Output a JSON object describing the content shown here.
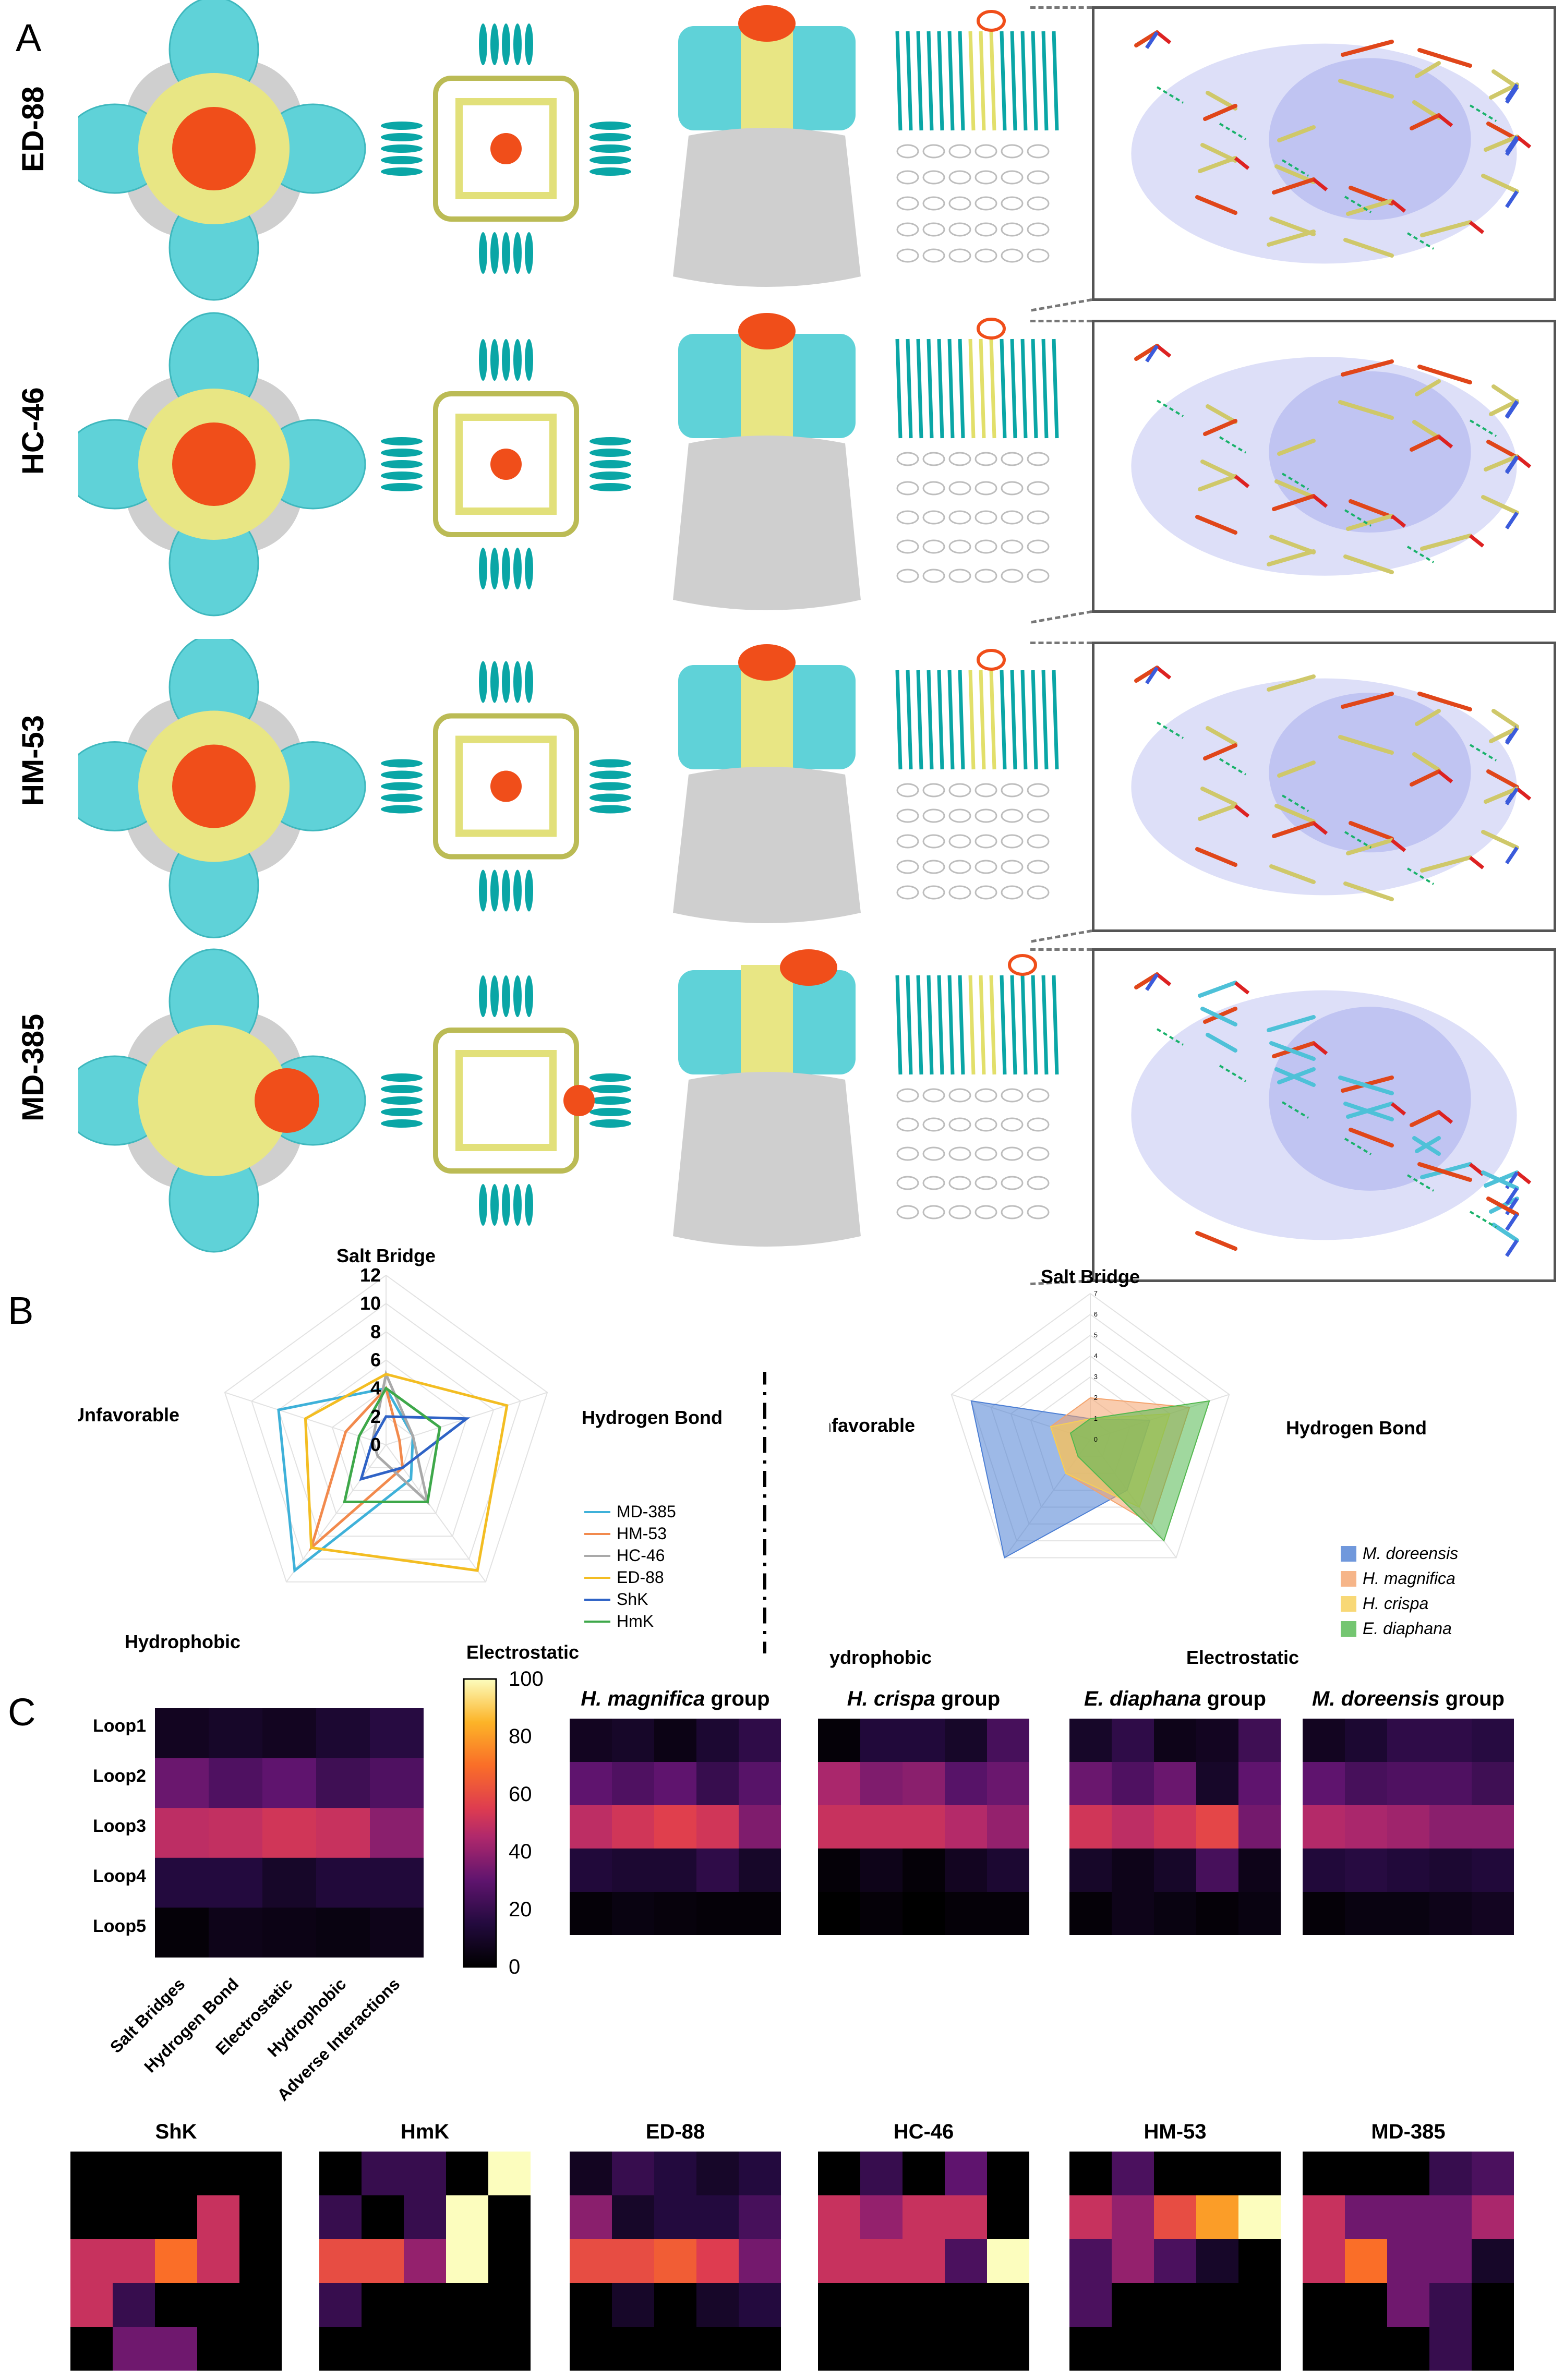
{
  "panels": {
    "a": "A",
    "b": "B",
    "c": "C"
  },
  "structures": {
    "rows": [
      {
        "label": "ED-88"
      },
      {
        "label": "HC-46"
      },
      {
        "label": "HM-53"
      },
      {
        "label": "MD-385"
      }
    ],
    "colors": {
      "channel": "#5fd2d8",
      "pore": "#e8e684",
      "toxin": "#f04e1a",
      "body": "#cfcfcf",
      "helix": "#0aa6a6"
    }
  },
  "radar_left": {
    "axes": [
      "Salt Bridge",
      "Hydrogen Bond",
      "Electrostatic",
      "Hydrophobic",
      "Unfavorable"
    ],
    "ticks": [
      "0",
      "2",
      "4",
      "6",
      "8",
      "10",
      "12"
    ],
    "max": 12,
    "series": [
      {
        "name": "MD-385",
        "color": "#3fb1d9",
        "values": [
          4,
          2,
          3,
          11,
          8
        ]
      },
      {
        "name": "HM-53",
        "color": "#f28a4d",
        "values": [
          4,
          1,
          2,
          9,
          3
        ]
      },
      {
        "name": "HC-46",
        "color": "#a9a9a9",
        "values": [
          5,
          2,
          5,
          1,
          1
        ]
      },
      {
        "name": "ED-88",
        "color": "#f3bd22",
        "values": [
          5,
          9,
          11,
          9,
          6
        ]
      },
      {
        "name": "ShK",
        "color": "#2f63c6",
        "values": [
          2,
          6,
          2,
          3,
          1
        ]
      },
      {
        "name": "HmK",
        "color": "#3ea84a",
        "values": [
          4,
          4,
          5,
          5,
          2
        ]
      }
    ]
  },
  "radar_right": {
    "axes": [
      "Salt Bridge",
      "Hydrogen Bond",
      "Electrostatic",
      "Hydrophobic",
      "Unfavorable"
    ],
    "ticks": [
      "0",
      "1",
      "2",
      "3",
      "4",
      "5",
      "6",
      "7"
    ],
    "max": 7,
    "series": [
      {
        "name": "M. doreensis",
        "color": "#4d7fd4",
        "values": [
          1,
          3,
          3,
          7,
          6
        ]
      },
      {
        "name": "H. magnifica",
        "color": "#f4a36c",
        "values": [
          2,
          5,
          5,
          2,
          2
        ]
      },
      {
        "name": "H. crispa",
        "color": "#f7cf55",
        "values": [
          1,
          4,
          4,
          2,
          2
        ]
      },
      {
        "name": "E. diaphana",
        "color": "#52b84e",
        "values": [
          1,
          6,
          6,
          1,
          1
        ]
      }
    ]
  },
  "heatmap_main": {
    "rows": [
      "Loop1",
      "Loop2",
      "Loop3",
      "Loop4",
      "Loop5"
    ],
    "cols": [
      "Salt Bridges",
      "Hydrogen Bond",
      "Electrostatic",
      "Hydrophobic",
      "Adverse Interactions"
    ],
    "values": [
      [
        8,
        10,
        8,
        12,
        16
      ],
      [
        32,
        26,
        30,
        22,
        26
      ],
      [
        48,
        49,
        52,
        50,
        38
      ],
      [
        15,
        15,
        10,
        14,
        14
      ],
      [
        2,
        6,
        5,
        4,
        6
      ]
    ],
    "colorbar": {
      "ticks": [
        "0",
        "20",
        "40",
        "60",
        "80",
        "100"
      ],
      "min": 0,
      "max": 100
    }
  },
  "group_heatmaps": [
    {
      "title_italic": "H. magnifica",
      "title_rest": " group",
      "values": [
        [
          8,
          10,
          5,
          12,
          18
        ],
        [
          30,
          26,
          30,
          20,
          28
        ],
        [
          48,
          52,
          56,
          52,
          36
        ],
        [
          14,
          12,
          12,
          18,
          10
        ],
        [
          2,
          4,
          3,
          2,
          2
        ]
      ]
    },
    {
      "title_italic": "H. crispa",
      "title_rest": " group",
      "values": [
        [
          2,
          14,
          14,
          10,
          24
        ],
        [
          44,
          36,
          38,
          28,
          32
        ],
        [
          50,
          50,
          50,
          46,
          40
        ],
        [
          2,
          6,
          2,
          8,
          12
        ],
        [
          0,
          2,
          0,
          2,
          2
        ]
      ]
    },
    {
      "title_italic": "E. diaphana",
      "title_rest": " group",
      "values": [
        [
          10,
          18,
          6,
          8,
          22
        ],
        [
          32,
          26,
          32,
          10,
          30
        ],
        [
          52,
          48,
          52,
          58,
          34
        ],
        [
          10,
          6,
          10,
          24,
          6
        ],
        [
          2,
          6,
          4,
          2,
          4
        ]
      ]
    },
    {
      "title_italic": "M. doreensis",
      "title_rest": " group",
      "values": [
        [
          8,
          12,
          18,
          18,
          16
        ],
        [
          30,
          24,
          26,
          26,
          22
        ],
        [
          46,
          44,
          42,
          38,
          38
        ],
        [
          14,
          16,
          14,
          12,
          14
        ],
        [
          2,
          4,
          4,
          6,
          8
        ]
      ]
    }
  ],
  "toxin_heatmaps": [
    {
      "title": "ShK",
      "values": [
        [
          0,
          0,
          0,
          0,
          0
        ],
        [
          0,
          0,
          0,
          50,
          0
        ],
        [
          50,
          50,
          70,
          50,
          0
        ],
        [
          50,
          20,
          0,
          0,
          0
        ],
        [
          0,
          33,
          33,
          0,
          0
        ]
      ]
    },
    {
      "title": "HmK",
      "values": [
        [
          0,
          20,
          20,
          0,
          100
        ],
        [
          20,
          0,
          20,
          100,
          0
        ],
        [
          60,
          60,
          40,
          100,
          0
        ],
        [
          20,
          0,
          0,
          0,
          0
        ],
        [
          0,
          0,
          0,
          0,
          0
        ]
      ]
    },
    {
      "title": "ED-88",
      "values": [
        [
          8,
          20,
          15,
          10,
          15
        ],
        [
          38,
          10,
          15,
          15,
          24
        ],
        [
          60,
          60,
          65,
          55,
          34
        ],
        [
          0,
          10,
          0,
          10,
          15
        ],
        [
          0,
          0,
          0,
          0,
          0
        ]
      ]
    },
    {
      "title": "HC-46",
      "values": [
        [
          0,
          20,
          0,
          30,
          0
        ],
        [
          50,
          40,
          50,
          50,
          0
        ],
        [
          50,
          50,
          50,
          25,
          100
        ],
        [
          0,
          0,
          0,
          0,
          0
        ],
        [
          0,
          0,
          0,
          0,
          0
        ]
      ]
    },
    {
      "title": "HM-53",
      "values": [
        [
          0,
          25,
          0,
          0,
          0
        ],
        [
          50,
          40,
          60,
          80,
          100
        ],
        [
          25,
          40,
          25,
          10,
          0
        ],
        [
          25,
          0,
          0,
          0,
          0
        ],
        [
          0,
          0,
          0,
          0,
          0
        ]
      ]
    },
    {
      "title": "MD-385",
      "values": [
        [
          0,
          0,
          0,
          20,
          25
        ],
        [
          50,
          33,
          33,
          33,
          44
        ],
        [
          50,
          70,
          33,
          33,
          10
        ],
        [
          0,
          0,
          33,
          20,
          0
        ],
        [
          0,
          0,
          0,
          20,
          0
        ]
      ]
    }
  ]
}
